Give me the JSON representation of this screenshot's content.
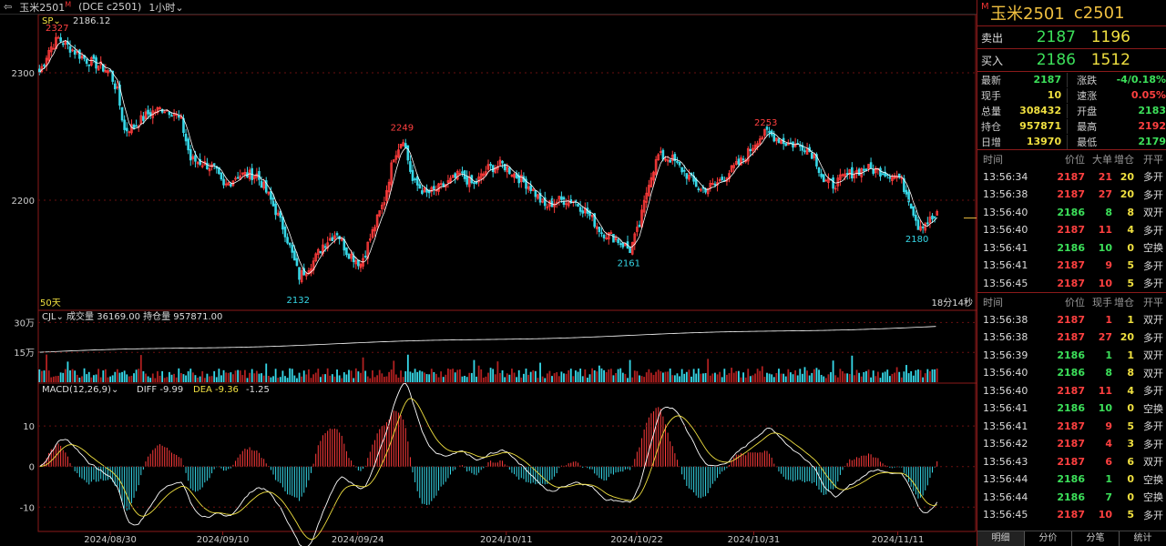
{
  "topbar": {
    "symbol": "玉米2501",
    "sup": "M",
    "code": "(DCE c2501)",
    "period": "1小时"
  },
  "chart_data": {
    "type": "candlestick",
    "x_ticks": [
      "2024/08/30",
      "2024/09/10",
      "2024/09/24",
      "2024/10/11",
      "2024/10/22",
      "2024/10/31",
      "2024/11/11"
    ],
    "y_ticks": [
      2300,
      2200
    ],
    "sp_label": "SP",
    "sp_value": "2186.12",
    "annotations": [
      {
        "text": "2327",
        "value": 2327
      },
      {
        "text": "2132",
        "value": 2132
      },
      {
        "text": "2249",
        "value": 2249
      },
      {
        "text": "2161",
        "value": 2161
      },
      {
        "text": "2253",
        "value": 2253
      },
      {
        "text": "2180",
        "value": 2180
      }
    ],
    "ma_label": "50天",
    "countdown": "18分14秒",
    "anchors": [
      [
        0,
        2300
      ],
      [
        4,
        2318
      ],
      [
        8,
        2327
      ],
      [
        14,
        2318
      ],
      [
        20,
        2310
      ],
      [
        26,
        2305
      ],
      [
        30,
        2300
      ],
      [
        33,
        2285
      ],
      [
        36,
        2255
      ],
      [
        40,
        2258
      ],
      [
        46,
        2268
      ],
      [
        52,
        2272
      ],
      [
        56,
        2270
      ],
      [
        60,
        2262
      ],
      [
        64,
        2232
      ],
      [
        68,
        2230
      ],
      [
        74,
        2225
      ],
      [
        78,
        2210
      ],
      [
        84,
        2220
      ],
      [
        92,
        2220
      ],
      [
        98,
        2200
      ],
      [
        104,
        2175
      ],
      [
        110,
        2140
      ],
      [
        116,
        2152
      ],
      [
        120,
        2165
      ],
      [
        126,
        2175
      ],
      [
        130,
        2160
      ],
      [
        136,
        2150
      ],
      [
        140,
        2170
      ],
      [
        146,
        2200
      ],
      [
        150,
        2235
      ],
      [
        154,
        2249
      ],
      [
        158,
        2215
      ],
      [
        164,
        2205
      ],
      [
        170,
        2210
      ],
      [
        178,
        2220
      ],
      [
        184,
        2212
      ],
      [
        190,
        2225
      ],
      [
        196,
        2228
      ],
      [
        200,
        2222
      ],
      [
        208,
        2210
      ],
      [
        214,
        2195
      ],
      [
        220,
        2200
      ],
      [
        226,
        2200
      ],
      [
        232,
        2190
      ],
      [
        238,
        2175
      ],
      [
        244,
        2170
      ],
      [
        250,
        2161
      ],
      [
        254,
        2180
      ],
      [
        258,
        2215
      ],
      [
        262,
        2235
      ],
      [
        268,
        2232
      ],
      [
        274,
        2220
      ],
      [
        280,
        2208
      ],
      [
        286,
        2212
      ],
      [
        292,
        2222
      ],
      [
        298,
        2232
      ],
      [
        304,
        2248
      ],
      [
        308,
        2253
      ],
      [
        316,
        2245
      ],
      [
        324,
        2242
      ],
      [
        328,
        2235
      ],
      [
        332,
        2215
      ],
      [
        336,
        2212
      ],
      [
        342,
        2220
      ],
      [
        350,
        2225
      ],
      [
        358,
        2222
      ],
      [
        364,
        2218
      ],
      [
        368,
        2202
      ],
      [
        372,
        2180
      ],
      [
        376,
        2183
      ],
      [
        380,
        2188
      ]
    ],
    "volume": {
      "label": "CJL",
      "vol_text": "成交量 36169.00",
      "oi_text": "持仓量 957871.00",
      "y_ticks": [
        "30万",
        "15万"
      ]
    },
    "macd": {
      "label": "MACD(12,26,9)",
      "diff_text": "DIFF -9.99",
      "dea_text": "DEA -9.36",
      "macd_text": "-1.25",
      "y_ticks": [
        10,
        0,
        -10
      ]
    }
  },
  "panel": {
    "name": "玉米2501",
    "code": "c2501",
    "mark": "M",
    "sell": {
      "label": "卖出",
      "price": "2187",
      "vol": "1196"
    },
    "buy": {
      "label": "买入",
      "price": "2186",
      "vol": "1512"
    },
    "quote": [
      {
        "l1": "最新",
        "v1": "2187",
        "c1": "g",
        "l2": "涨跌",
        "v2": "-4/0.18%",
        "c2": "g"
      },
      {
        "l1": "现手",
        "v1": "10",
        "c1": "y",
        "l2": "速涨",
        "v2": "0.05%",
        "c2": "rd"
      },
      {
        "l1": "总量",
        "v1": "308432",
        "c1": "y",
        "l2": "开盘",
        "v2": "2183",
        "c2": "g"
      },
      {
        "l1": "持仓",
        "v1": "957871",
        "c1": "y",
        "l2": "最高",
        "v2": "2192",
        "c2": "rd"
      },
      {
        "l1": "日增",
        "v1": "13970",
        "c1": "y",
        "l2": "最低",
        "v2": "2179",
        "c2": "g"
      }
    ],
    "t1_header": [
      "时间",
      "价位",
      "大单",
      "增仓",
      "开平"
    ],
    "t1": [
      [
        "13:56:34",
        "2187",
        "21",
        "20",
        "多开",
        "rd"
      ],
      [
        "13:56:38",
        "2187",
        "27",
        "20",
        "多开",
        "rd"
      ],
      [
        "13:56:40",
        "2186",
        "8",
        "8",
        "双开",
        "g"
      ],
      [
        "13:56:40",
        "2187",
        "11",
        "4",
        "多开",
        "rd"
      ],
      [
        "13:56:41",
        "2186",
        "10",
        "0",
        "空换",
        "g"
      ],
      [
        "13:56:41",
        "2187",
        "9",
        "5",
        "多开",
        "rd"
      ],
      [
        "13:56:45",
        "2187",
        "10",
        "5",
        "多开",
        "rd"
      ]
    ],
    "t2_header": [
      "时间",
      "价位",
      "现手",
      "增仓",
      "开平"
    ],
    "t2": [
      [
        "13:56:38",
        "2187",
        "1",
        "1",
        "双开",
        "rd"
      ],
      [
        "13:56:38",
        "2187",
        "27",
        "20",
        "多开",
        "rd"
      ],
      [
        "13:56:39",
        "2186",
        "1",
        "1",
        "双开",
        "g"
      ],
      [
        "13:56:40",
        "2186",
        "8",
        "8",
        "双开",
        "g"
      ],
      [
        "13:56:40",
        "2187",
        "11",
        "4",
        "多开",
        "rd"
      ],
      [
        "13:56:41",
        "2186",
        "10",
        "0",
        "空换",
        "g"
      ],
      [
        "13:56:41",
        "2187",
        "9",
        "5",
        "多开",
        "rd"
      ],
      [
        "13:56:42",
        "2187",
        "4",
        "3",
        "多开",
        "rd"
      ],
      [
        "13:56:43",
        "2187",
        "6",
        "6",
        "双开",
        "rd"
      ],
      [
        "13:56:44",
        "2186",
        "1",
        "0",
        "空换",
        "g"
      ],
      [
        "13:56:44",
        "2186",
        "7",
        "0",
        "空换",
        "g"
      ],
      [
        "13:56:45",
        "2187",
        "10",
        "5",
        "多开",
        "rd"
      ]
    ],
    "tabs": [
      "明细",
      "分价",
      "分笔",
      "统计"
    ]
  }
}
